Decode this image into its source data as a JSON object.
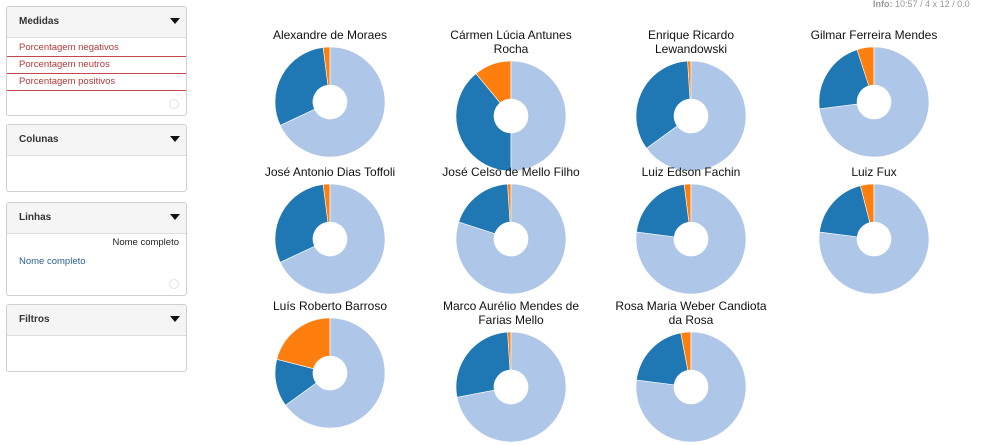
{
  "status": {
    "info_label": "Info:",
    "time": "10:57",
    "dims": "/ 4 x 12",
    "cut": "/ 0.0"
  },
  "panels": {
    "medidas": {
      "title": "Medidas",
      "items": [
        "Porcentagem negativos",
        "Porcentagem neutros",
        "Porcentagem positivos"
      ]
    },
    "colunas": {
      "title": "Colunas"
    },
    "linhas": {
      "title": "Linhas",
      "top_label": "Nome completo",
      "item": "Nome completo"
    },
    "filtros": {
      "title": "Filtros"
    }
  },
  "colors": {
    "negativos": "#1f77b4",
    "neutros": "#ff7f0e",
    "positivos": "#aec7e8"
  },
  "chart_data": {
    "type": "pie",
    "series_names": [
      "Porcentagem negativos",
      "Porcentagem neutros",
      "Porcentagem positivos"
    ],
    "charts": [
      {
        "title": [
          "Alexandre de Moraes"
        ],
        "values": [
          30,
          2,
          68
        ]
      },
      {
        "title": [
          "Cármen Lúcia Antunes",
          "Rocha"
        ],
        "values": [
          39,
          11,
          50
        ]
      },
      {
        "title": [
          "Enrique Ricardo",
          "Lewandowski"
        ],
        "values": [
          34,
          1,
          65
        ]
      },
      {
        "title": [
          "Gilmar Ferreira Mendes"
        ],
        "values": [
          22,
          5,
          73
        ]
      },
      {
        "title": [
          "José Antonio Dias Toffoli"
        ],
        "values": [
          30,
          2,
          68
        ]
      },
      {
        "title": [
          "José Celso de Mello Filho"
        ],
        "values": [
          19,
          1,
          80
        ]
      },
      {
        "title": [
          "Luiz Edson Fachin"
        ],
        "values": [
          21,
          2,
          77
        ]
      },
      {
        "title": [
          "Luiz Fux"
        ],
        "values": [
          19,
          4,
          77
        ]
      },
      {
        "title": [
          "Luís Roberto Barroso"
        ],
        "values": [
          14,
          21,
          65
        ]
      },
      {
        "title": [
          "Marco Aurélio Mendes de",
          "Farias Mello"
        ],
        "values": [
          27,
          1,
          72
        ]
      },
      {
        "title": [
          "Rosa Maria Weber Candiota",
          "da Rosa"
        ],
        "values": [
          20,
          3,
          77
        ]
      }
    ]
  }
}
